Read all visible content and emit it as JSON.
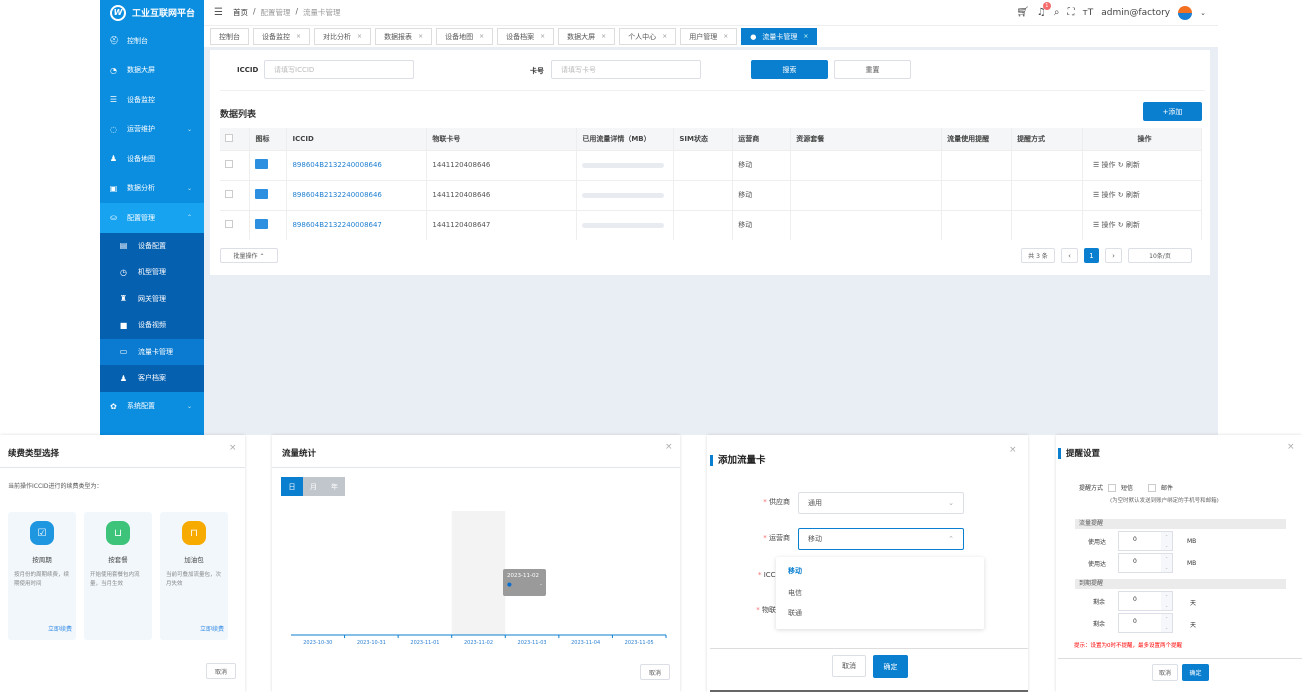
{
  "app": {
    "title": "工业互联网平台",
    "logo_mark": "W"
  },
  "sidebar": {
    "items": [
      {
        "label": "控制台",
        "icon": "dashboard-icon"
      },
      {
        "label": "数据大屏",
        "icon": "screen-icon"
      },
      {
        "label": "设备监控",
        "icon": "list-icon"
      },
      {
        "label": "运营维护",
        "icon": "refresh-icon",
        "chevron": "⌄"
      },
      {
        "label": "设备地图",
        "icon": "map-icon"
      },
      {
        "label": "数据分析",
        "icon": "chart-icon",
        "chevron": "⌄"
      },
      {
        "label": "配置管理",
        "icon": "config-icon",
        "chevron": "⌃"
      }
    ],
    "sub_items": [
      {
        "label": "设备配置"
      },
      {
        "label": "机型管理"
      },
      {
        "label": "网关管理"
      },
      {
        "label": "设备视频"
      },
      {
        "label": "流量卡管理"
      },
      {
        "label": "客户档案"
      }
    ],
    "last": {
      "label": "系统配置",
      "chevron": "⌄"
    }
  },
  "header": {
    "breadcrumb": [
      "首页",
      "配置管理",
      "流量卡管理"
    ],
    "separator": "/",
    "user": "admin@factory",
    "notification_count": "1"
  },
  "tabs": [
    {
      "label": "控制台"
    },
    {
      "label": "设备监控"
    },
    {
      "label": "对比分析"
    },
    {
      "label": "数据报表"
    },
    {
      "label": "设备地图"
    },
    {
      "label": "设备档案"
    },
    {
      "label": "数据大屏"
    },
    {
      "label": "个人中心"
    },
    {
      "label": "用户管理"
    },
    {
      "label": "流量卡管理",
      "active": true
    }
  ],
  "search": {
    "iccid_label": "ICCID",
    "iccid_placeholder": "请填写ICCID",
    "card_label": "卡号",
    "card_placeholder": "请填写卡号",
    "search_btn": "搜索",
    "reset_btn": "重置"
  },
  "list": {
    "title": "数据列表",
    "add_btn": "+添加",
    "columns": [
      "",
      "图标",
      "ICCID",
      "物联卡号",
      "已用流量详情（MB）",
      "SIM状态",
      "运营商",
      "资源套餐",
      "流量使用提醒",
      "提醒方式",
      "操作"
    ],
    "rows": [
      {
        "iccid": "898604B2132240008646",
        "card": "1441120408646",
        "operator": "移动",
        "action1": "操作",
        "action2": "刷新"
      },
      {
        "iccid": "898604B2132240008646",
        "card": "1441120408646",
        "operator": "移动",
        "action1": "操作",
        "action2": "刷新"
      },
      {
        "iccid": "898604B2132240008647",
        "card": "1441120408647",
        "operator": "移动",
        "action1": "操作",
        "action2": "刷新"
      }
    ],
    "batch_btn": "批量操作 ⌃",
    "pagination": {
      "total": "共 3 条",
      "prev": "‹",
      "page": "1",
      "next": "›",
      "page_size": "10条/页"
    }
  },
  "renew_modal": {
    "title": "续费类型选择",
    "desc": "当前操作ICCID进行的续费类型为：",
    "cards": [
      {
        "name": "按周期",
        "desc": "按月份的周期续费，续期使用时间",
        "link": "立即续费",
        "color": "#1e96e0"
      },
      {
        "name": "按套餐",
        "desc": "开始使用套餐包内流量，当月生效",
        "link": "",
        "color": "#3dc47a"
      },
      {
        "name": "加油包",
        "desc": "当前可叠加流量包，次月失效",
        "link": "立即续费",
        "color": "#f7aa00"
      }
    ],
    "cancel": "取消"
  },
  "traffic_modal": {
    "title": "流量统计",
    "tabs": [
      "日",
      "月",
      "年"
    ],
    "cancel": "取消",
    "tooltip": {
      "date": "2023-11-02",
      "value": "-"
    }
  },
  "chart_data": {
    "type": "line",
    "x": [
      "2023-10-30",
      "2023-10-31",
      "2023-11-01",
      "2023-11-02",
      "2023-11-03",
      "2023-11-04",
      "2023-11-05"
    ],
    "series": [
      {
        "values": [
          null,
          null,
          null,
          null,
          null,
          null,
          null
        ]
      }
    ],
    "highlight": "2023-11-02",
    "color": "#0b7fcf"
  },
  "add_modal": {
    "title": "添加流量卡",
    "fields": [
      {
        "label": "供应商",
        "value": "通用"
      },
      {
        "label": "运营商",
        "value": "移动"
      },
      {
        "label": "ICCID号",
        "value": ""
      },
      {
        "label": "物联卡号",
        "value": ""
      }
    ],
    "dropdown": [
      "移动",
      "电信",
      "联通"
    ],
    "cancel": "取消",
    "ok": "确定"
  },
  "remind_modal": {
    "title": "提醒设置",
    "method_label": "提醒方式",
    "options": [
      "短信",
      "邮件"
    ],
    "note": "(为空时默认发送到账户绑定的手机号和邮箱)",
    "traffic_section": "流量提醒",
    "traffic_rows": [
      {
        "label": "使用达",
        "value": "0",
        "unit": "MB"
      },
      {
        "label": "使用达",
        "value": "0",
        "unit": "MB"
      }
    ],
    "expire_section": "到期提醒",
    "expire_rows": [
      {
        "label": "剩余",
        "value": "0",
        "unit": "天"
      },
      {
        "label": "剩余",
        "value": "0",
        "unit": "天"
      }
    ],
    "warning": "提示：设置为0时不提醒，最多设置两个提醒",
    "cancel": "取消",
    "ok": "确定"
  }
}
